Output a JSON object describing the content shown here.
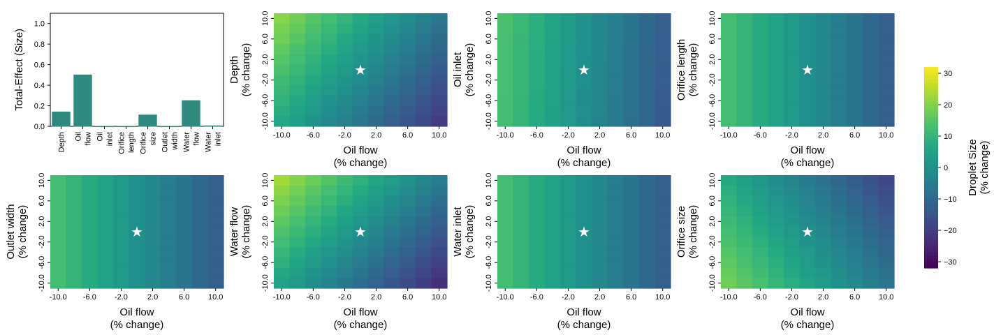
{
  "chart_data": [
    {
      "type": "bar",
      "ylabel": "Total-Effect (Size)",
      "ylim": [
        0,
        1.1
      ],
      "y_ticks": [
        "0.0",
        "0.2",
        "0.4",
        "0.6",
        "0.8",
        "1.0"
      ],
      "categories": [
        [
          "Depth"
        ],
        [
          "Oil",
          "flow"
        ],
        [
          "Oil",
          "inlet"
        ],
        [
          "Orifice",
          "length"
        ],
        [
          "Orifice",
          "size"
        ],
        [
          "Outlet",
          "width"
        ],
        [
          "Water",
          "flow"
        ],
        [
          "Water",
          "inlet"
        ]
      ],
      "values": [
        0.14,
        0.5,
        0.0,
        0.0,
        0.11,
        0.0,
        0.25,
        0.005
      ],
      "bar_color": "#2e8a7f"
    },
    {
      "type": "heatmap",
      "ylabel": [
        "Depth",
        "(% change)"
      ],
      "xlabel": [
        "Oil flow",
        "(% change)"
      ],
      "x_ticks": [
        "-10.0",
        "-6.0",
        "-2.0",
        "2.0",
        "6.0",
        "10.0"
      ],
      "y_ticks": [
        "10.0",
        "6.0",
        "2.0",
        "-2.0",
        "-6.0",
        "-10.0"
      ],
      "x_range": [
        -10,
        10
      ],
      "y_range": [
        -10,
        10
      ],
      "oil_coef": -1.35,
      "param_coef": 0.7,
      "offset": 0,
      "marker": {
        "x": 0,
        "y": 0,
        "symbol": "★"
      }
    },
    {
      "type": "heatmap",
      "ylabel": [
        "Oil inlet",
        "(% change)"
      ],
      "xlabel": [
        "Oil flow",
        "(% change)"
      ],
      "x_ticks": [
        "-10.0",
        "-6.0",
        "-2.0",
        "2.0",
        "6.0",
        "10.0"
      ],
      "y_ticks": [
        "10.0",
        "6.0",
        "2.0",
        "-2.0",
        "-6.0",
        "-10.0"
      ],
      "x_range": [
        -10,
        10
      ],
      "y_range": [
        -10,
        10
      ],
      "oil_coef": -1.3,
      "param_coef": 0.05,
      "offset": 0,
      "marker": {
        "x": 0,
        "y": 0,
        "symbol": "★"
      }
    },
    {
      "type": "heatmap",
      "ylabel": [
        "Orifice length",
        "(% change)"
      ],
      "xlabel": [
        "Oil flow",
        "(% change)"
      ],
      "x_ticks": [
        "-10.0",
        "-6.0",
        "-2.0",
        "2.0",
        "6.0",
        "10.0"
      ],
      "y_ticks": [
        "10.0",
        "6.0",
        "2.0",
        "-2.0",
        "-6.0",
        "-10.0"
      ],
      "x_range": [
        -10,
        10
      ],
      "y_range": [
        -10,
        10
      ],
      "oil_coef": -1.25,
      "param_coef": 0.0,
      "offset": 0,
      "marker": {
        "x": 0,
        "y": 0,
        "symbol": "★"
      }
    },
    {
      "type": "heatmap",
      "ylabel": [
        "Outlet width",
        "(% change)"
      ],
      "xlabel": [
        "Oil flow",
        "(% change)"
      ],
      "x_ticks": [
        "-10.0",
        "-6.0",
        "-2.0",
        "2.0",
        "6.0",
        "10.0"
      ],
      "y_ticks": [
        "10.0",
        "6.0",
        "2.0",
        "-2.0",
        "-6.0",
        "-10.0"
      ],
      "x_range": [
        -10,
        10
      ],
      "y_range": [
        -10,
        10
      ],
      "oil_coef": -1.25,
      "param_coef": 0.0,
      "offset": 0,
      "marker": {
        "x": 0,
        "y": 0,
        "symbol": "★"
      }
    },
    {
      "type": "heatmap",
      "ylabel": [
        "Water flow",
        "(% change)"
      ],
      "xlabel": [
        "Oil flow",
        "(% change)"
      ],
      "x_ticks": [
        "-10.0",
        "-6.0",
        "-2.0",
        "2.0",
        "6.0",
        "10.0"
      ],
      "y_ticks": [
        "10.0",
        "6.0",
        "2.0",
        "-2.0",
        "-6.0",
        "-10.0"
      ],
      "x_range": [
        -10,
        10
      ],
      "y_range": [
        -10,
        10
      ],
      "oil_coef": -1.4,
      "param_coef": 0.9,
      "offset": 0,
      "marker": {
        "x": 0,
        "y": 0,
        "symbol": "★"
      }
    },
    {
      "type": "heatmap",
      "ylabel": [
        "Water inlet",
        "(% change)"
      ],
      "xlabel": [
        "Oil flow",
        "(% change)"
      ],
      "x_ticks": [
        "-10.0",
        "-6.0",
        "-2.0",
        "2.0",
        "6.0",
        "10.0"
      ],
      "y_ticks": [
        "10.0",
        "6.0",
        "2.0",
        "-2.0",
        "-6.0",
        "-10.0"
      ],
      "x_range": [
        -10,
        10
      ],
      "y_range": [
        -10,
        10
      ],
      "oil_coef": -1.25,
      "param_coef": 0.0,
      "offset": 0,
      "marker": {
        "x": 0,
        "y": 0,
        "symbol": "★"
      }
    },
    {
      "type": "heatmap",
      "ylabel": [
        "Orifice size",
        "(% change)"
      ],
      "xlabel": [
        "Oil flow",
        "(% change)"
      ],
      "x_ticks": [
        "-10.0",
        "-6.0",
        "-2.0",
        "2.0",
        "6.0",
        "10.0"
      ],
      "y_ticks": [
        "10.0",
        "6.0",
        "2.0",
        "-2.0",
        "-6.0",
        "-10.0"
      ],
      "x_range": [
        -10,
        10
      ],
      "y_range": [
        -10,
        10
      ],
      "oil_coef": -1.25,
      "param_coef": -0.55,
      "offset": 0,
      "marker": {
        "x": 0,
        "y": 0,
        "symbol": "★"
      }
    }
  ],
  "colorbar": {
    "label": [
      "Droplet Size",
      "(% change)"
    ],
    "range": [
      -32,
      32
    ],
    "ticks": [
      {
        "v": 30,
        "t": "30"
      },
      {
        "v": 20,
        "t": "20"
      },
      {
        "v": 10,
        "t": "10"
      },
      {
        "v": 0,
        "t": "0"
      },
      {
        "v": -10,
        "t": "−10"
      },
      {
        "v": -20,
        "t": "−20"
      },
      {
        "v": -30,
        "t": "−30"
      }
    ],
    "colormap": "viridis"
  }
}
